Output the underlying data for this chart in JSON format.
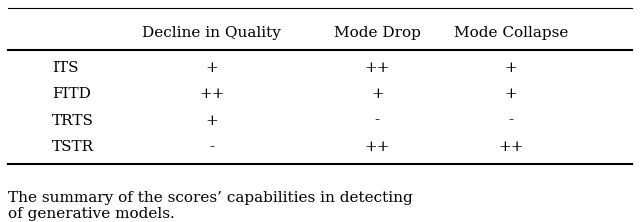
{
  "col_headers": [
    "Decline in Quality",
    "Mode Drop",
    "Mode Collapse"
  ],
  "row_labels": [
    "ITS",
    "FITD",
    "TRTS",
    "TSTR"
  ],
  "table_data": [
    [
      "+",
      "++",
      "+"
    ],
    [
      "++",
      "+",
      "+"
    ],
    [
      "+",
      "-",
      "-"
    ],
    [
      "-",
      "++",
      "++"
    ]
  ],
  "caption": "The summary of the scores’ capabilities in detecting\nof generative models.",
  "background_color": "#ffffff",
  "text_color": "#000000",
  "font_size": 11,
  "caption_font_size": 11
}
